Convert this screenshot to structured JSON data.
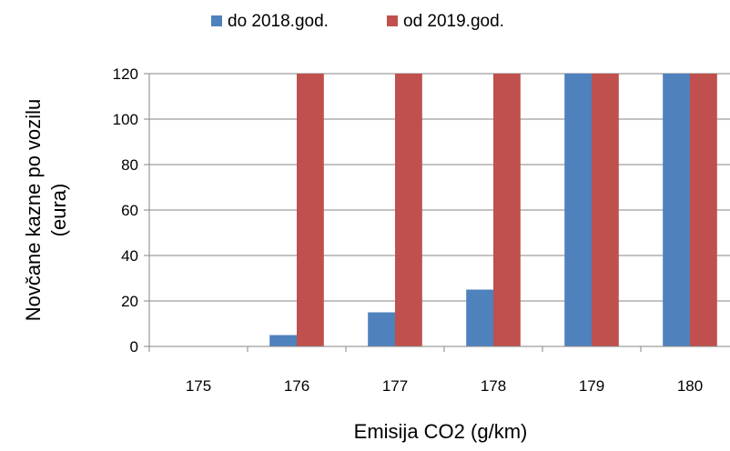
{
  "chart_data": {
    "type": "bar",
    "title": "",
    "xlabel": "Emisija CO2 (g/km)",
    "ylabel": [
      "Novčane kazne po vozilu",
      "(eura)"
    ],
    "categories": [
      "175",
      "176",
      "177",
      "178",
      "179",
      "180"
    ],
    "series": [
      {
        "name": "do 2018.god.",
        "color": "#4F81BD",
        "values": [
          0,
          5,
          15,
          25,
          120,
          120
        ]
      },
      {
        "name": "od 2019.god.",
        "color": "#C0504D",
        "values": [
          0,
          120,
          120,
          120,
          120,
          120
        ]
      }
    ],
    "ylim": [
      0,
      120
    ],
    "yticks": [
      0,
      20,
      40,
      60,
      80,
      100,
      120
    ],
    "grid": true,
    "legend_position": "top-center"
  }
}
